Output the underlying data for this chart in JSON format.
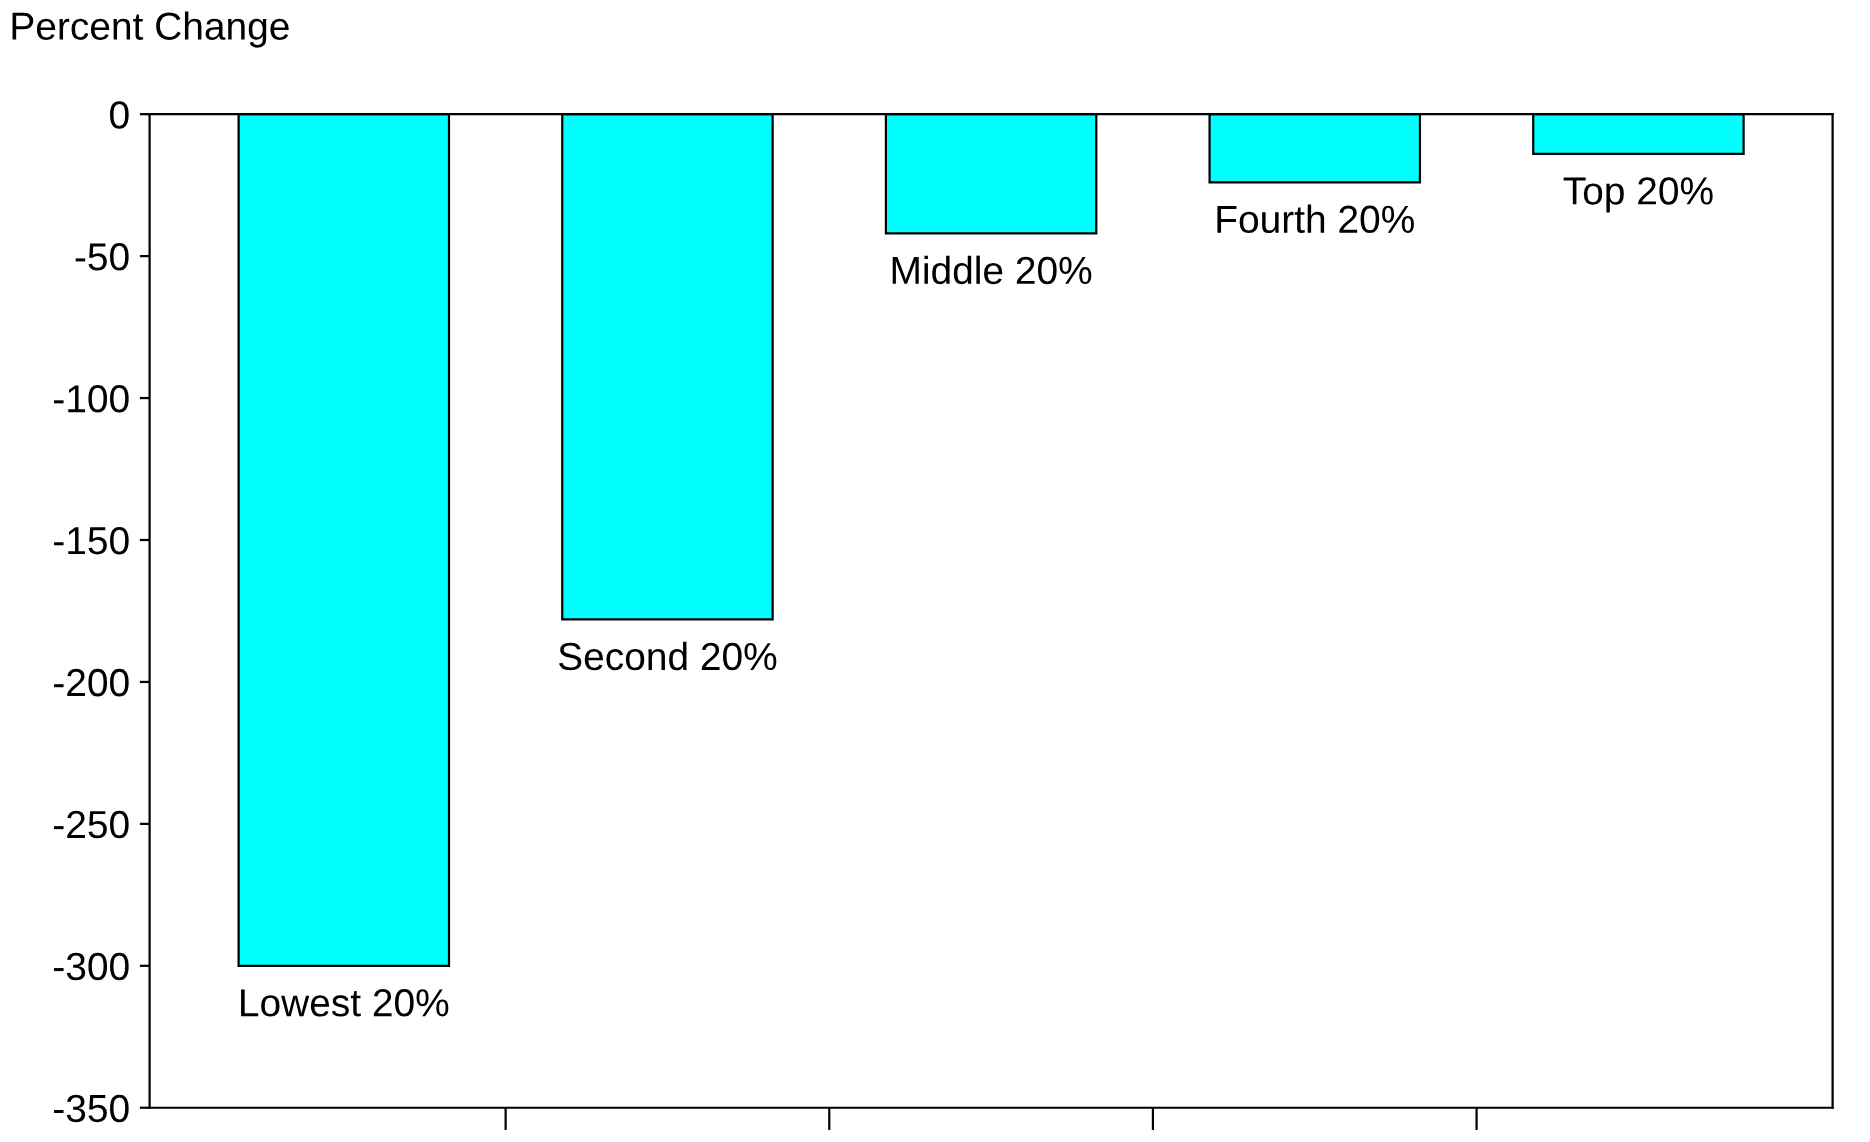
{
  "chart_data": {
    "type": "bar",
    "ylabel": "Percent Change",
    "categories": [
      "Lowest 20%",
      "Second 20%",
      "Middle 20%",
      "Fourth 20%",
      "Top 20%"
    ],
    "values": [
      -300,
      -178,
      -42,
      -24,
      -14
    ],
    "color": "#00ffff",
    "ylim": [
      -350,
      0
    ],
    "yticks": [
      0,
      -50,
      -100,
      -150,
      -200,
      -250,
      -300,
      -350
    ],
    "grid": false
  }
}
